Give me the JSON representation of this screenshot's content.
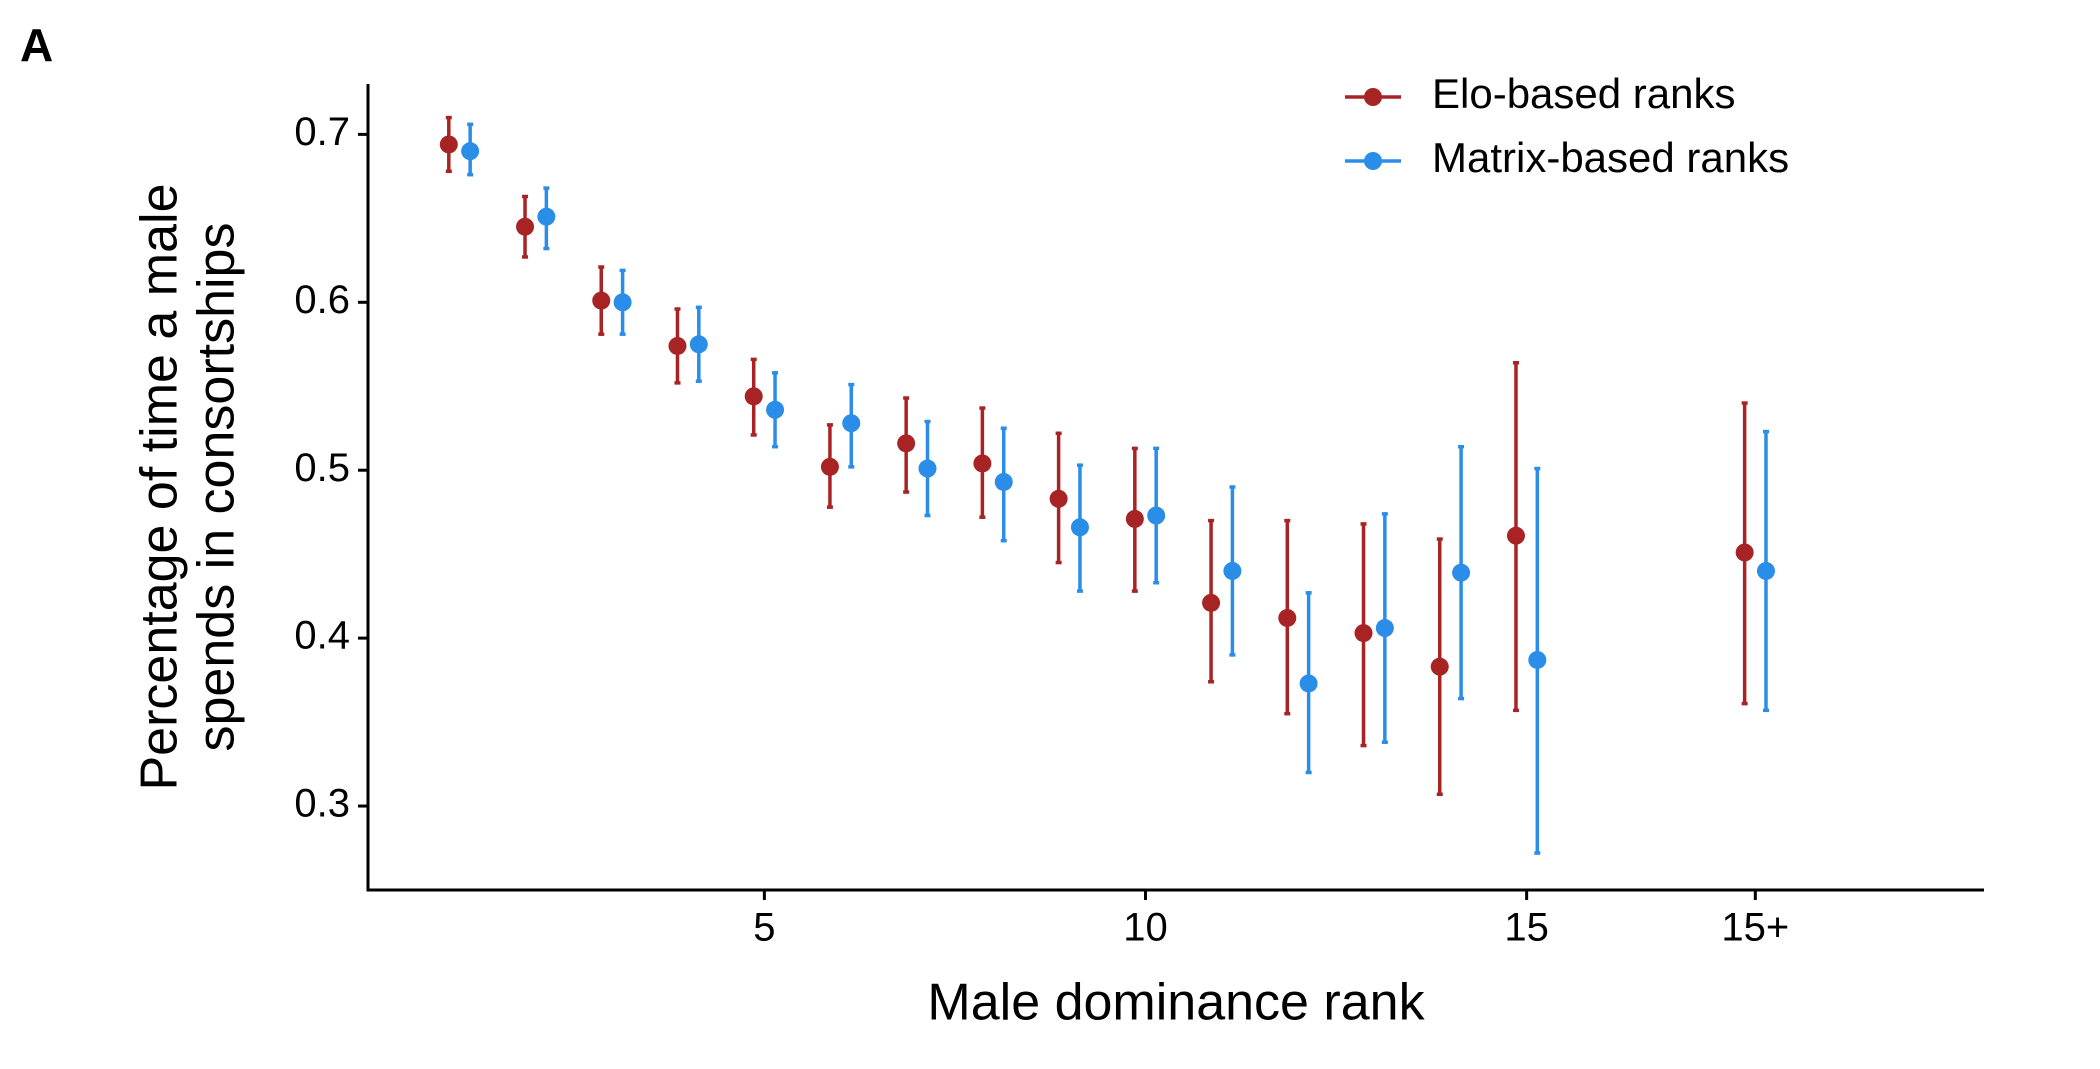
{
  "chart_data": {
    "type": "errorbar",
    "panel_label": "A",
    "x_label": "Male dominance rank",
    "y_label": [
      "Percentage of time a male",
      "spends in consortships"
    ],
    "x": [
      1,
      2,
      3,
      4,
      5,
      6,
      7,
      8,
      9,
      10,
      11,
      12,
      13,
      14,
      15,
      18
    ],
    "xlim": [
      -0.2,
      21
    ],
    "xticks": [
      5,
      10,
      15,
      {
        "value": 18,
        "label": "15+"
      }
    ],
    "ylim": [
      0.25,
      0.73
    ],
    "yticks": [
      0.3,
      0.4,
      0.5,
      0.6,
      0.7
    ],
    "legend_position": "top-right",
    "series": [
      {
        "name": "Elo-based ranks",
        "color": "#a82424",
        "values": [
          0.694,
          0.645,
          0.601,
          0.574,
          0.544,
          0.502,
          0.516,
          0.504,
          0.483,
          0.471,
          0.421,
          0.412,
          0.403,
          0.383,
          0.461,
          0.451
        ],
        "lower": [
          0.678,
          0.627,
          0.581,
          0.552,
          0.521,
          0.478,
          0.487,
          0.472,
          0.445,
          0.428,
          0.374,
          0.355,
          0.336,
          0.307,
          0.357,
          0.361
        ],
        "upper": [
          0.71,
          0.663,
          0.621,
          0.596,
          0.566,
          0.527,
          0.543,
          0.537,
          0.522,
          0.513,
          0.47,
          0.47,
          0.468,
          0.459,
          0.564,
          0.54
        ]
      },
      {
        "name": "Matrix-based ranks",
        "color": "#2a8de8",
        "values": [
          0.69,
          0.651,
          0.6,
          0.575,
          0.536,
          0.528,
          0.501,
          0.493,
          0.466,
          0.473,
          0.44,
          0.373,
          0.406,
          0.439,
          0.387,
          0.44
        ],
        "lower": [
          0.676,
          0.632,
          0.581,
          0.553,
          0.514,
          0.502,
          0.473,
          0.458,
          0.428,
          0.433,
          0.39,
          0.32,
          0.338,
          0.364,
          0.272,
          0.357
        ],
        "upper": [
          0.706,
          0.668,
          0.619,
          0.597,
          0.558,
          0.551,
          0.529,
          0.525,
          0.503,
          0.513,
          0.49,
          0.427,
          0.474,
          0.514,
          0.501,
          0.523
        ]
      }
    ]
  }
}
